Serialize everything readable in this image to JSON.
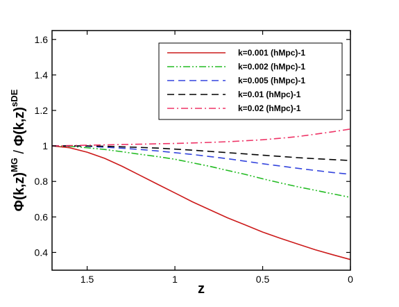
{
  "chart_data": {
    "type": "line",
    "xlabel": "z",
    "ylabel_parts": {
      "main_left": "Φ(k,z)",
      "sup_left": "MG",
      "divider": " / ",
      "main_right": "Φ(k,z)",
      "sup_right": "sDE"
    },
    "xlim": [
      1.7,
      0
    ],
    "ylim": [
      0.3,
      1.65
    ],
    "x_ticks": [
      1.5,
      1,
      0.5,
      0
    ],
    "x_tick_labels": [
      "1.5",
      "1",
      "0.5",
      "0"
    ],
    "y_ticks": [
      0.4,
      0.6,
      0.8,
      1,
      1.2,
      1.4,
      1.6
    ],
    "y_tick_labels": [
      "0.4",
      "0.6",
      "0.8",
      "1",
      "1.2",
      "1.4",
      "1.6"
    ],
    "grid": false,
    "legend_position": "top-right",
    "series": [
      {
        "name": "k=0.001 (hMpc)-1",
        "color": "#cc1a1a",
        "dash": "solid",
        "points": [
          [
            1.7,
            1.0
          ],
          [
            1.6,
            0.99
          ],
          [
            1.5,
            0.965
          ],
          [
            1.4,
            0.93
          ],
          [
            1.3,
            0.885
          ],
          [
            1.2,
            0.835
          ],
          [
            1.1,
            0.785
          ],
          [
            1.0,
            0.735
          ],
          [
            0.9,
            0.685
          ],
          [
            0.8,
            0.64
          ],
          [
            0.7,
            0.595
          ],
          [
            0.6,
            0.555
          ],
          [
            0.5,
            0.515
          ],
          [
            0.4,
            0.48
          ],
          [
            0.3,
            0.447
          ],
          [
            0.2,
            0.415
          ],
          [
            0.1,
            0.387
          ],
          [
            0.0,
            0.36
          ]
        ]
      },
      {
        "name": "k=0.002 (hMpc)-1",
        "color": "#22bb22",
        "dash": "dashdotdot",
        "points": [
          [
            1.7,
            1.0
          ],
          [
            1.6,
            0.998
          ],
          [
            1.5,
            0.99
          ],
          [
            1.4,
            0.98
          ],
          [
            1.3,
            0.967
          ],
          [
            1.2,
            0.953
          ],
          [
            1.1,
            0.94
          ],
          [
            1.0,
            0.925
          ],
          [
            0.9,
            0.905
          ],
          [
            0.8,
            0.885
          ],
          [
            0.7,
            0.862
          ],
          [
            0.6,
            0.84
          ],
          [
            0.5,
            0.815
          ],
          [
            0.4,
            0.792
          ],
          [
            0.3,
            0.77
          ],
          [
            0.2,
            0.75
          ],
          [
            0.1,
            0.73
          ],
          [
            0.0,
            0.71
          ]
        ]
      },
      {
        "name": "k=0.005 (hMpc)-1",
        "color": "#3344dd",
        "dash": "dash",
        "points": [
          [
            1.7,
            1.0
          ],
          [
            1.6,
            1.0
          ],
          [
            1.5,
            0.998
          ],
          [
            1.4,
            0.993
          ],
          [
            1.3,
            0.987
          ],
          [
            1.2,
            0.98
          ],
          [
            1.1,
            0.972
          ],
          [
            1.0,
            0.962
          ],
          [
            0.9,
            0.952
          ],
          [
            0.8,
            0.94
          ],
          [
            0.7,
            0.928
          ],
          [
            0.6,
            0.914
          ],
          [
            0.5,
            0.9
          ],
          [
            0.4,
            0.887
          ],
          [
            0.3,
            0.874
          ],
          [
            0.2,
            0.862
          ],
          [
            0.1,
            0.85
          ],
          [
            0.0,
            0.84
          ]
        ]
      },
      {
        "name": "k=0.01 (hMpc)-1",
        "color": "#000000",
        "dash": "dash",
        "points": [
          [
            1.7,
            1.0
          ],
          [
            1.6,
            1.0
          ],
          [
            1.5,
            1.0
          ],
          [
            1.4,
            0.998
          ],
          [
            1.3,
            0.995
          ],
          [
            1.2,
            0.992
          ],
          [
            1.1,
            0.988
          ],
          [
            1.0,
            0.982
          ],
          [
            0.9,
            0.976
          ],
          [
            0.8,
            0.969
          ],
          [
            0.7,
            0.962
          ],
          [
            0.6,
            0.955
          ],
          [
            0.5,
            0.948
          ],
          [
            0.4,
            0.941
          ],
          [
            0.3,
            0.934
          ],
          [
            0.2,
            0.928
          ],
          [
            0.1,
            0.923
          ],
          [
            0.0,
            0.918
          ]
        ]
      },
      {
        "name": "k=0.02 (hMpc)-1",
        "color": "#ee3366",
        "dash": "dashdot",
        "points": [
          [
            1.7,
            1.0
          ],
          [
            1.6,
            1.002
          ],
          [
            1.5,
            1.004
          ],
          [
            1.4,
            1.006
          ],
          [
            1.3,
            1.008
          ],
          [
            1.2,
            1.01
          ],
          [
            1.1,
            1.012
          ],
          [
            1.0,
            1.014
          ],
          [
            0.9,
            1.017
          ],
          [
            0.8,
            1.02
          ],
          [
            0.7,
            1.024
          ],
          [
            0.6,
            1.029
          ],
          [
            0.5,
            1.035
          ],
          [
            0.4,
            1.043
          ],
          [
            0.3,
            1.053
          ],
          [
            0.2,
            1.066
          ],
          [
            0.1,
            1.08
          ],
          [
            0.0,
            1.095
          ]
        ]
      }
    ]
  }
}
